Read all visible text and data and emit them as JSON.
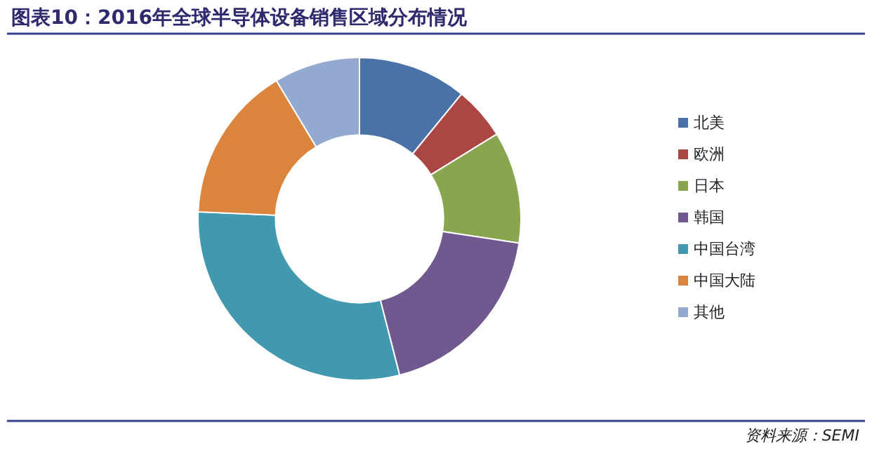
{
  "chart_data": {
    "type": "donut",
    "title": "图表10：2016年全球半导体设备销售区域分布情况",
    "categories": [
      "北美",
      "欧洲",
      "日本",
      "韩国",
      "中国台湾",
      "中国大陆",
      "其他"
    ],
    "values": [
      10.9,
      5.3,
      11.2,
      18.6,
      29.7,
      15.7,
      8.6
    ],
    "colors": [
      "#4a72a8",
      "#aa4643",
      "#89a54e",
      "#71588f",
      "#4198af",
      "#db843d",
      "#93a9cf"
    ],
    "legend": "right",
    "annotations": [
      "资料来源：SEMI"
    ]
  }
}
